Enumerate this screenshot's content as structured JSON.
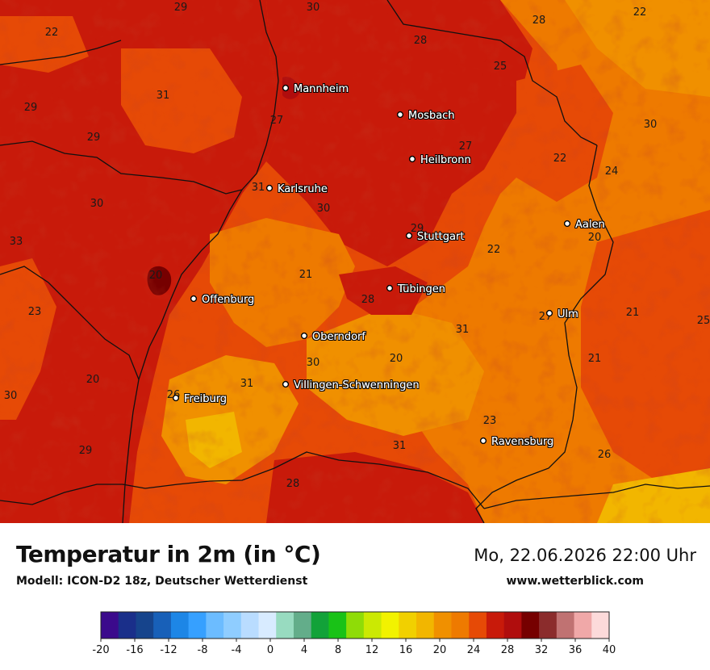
{
  "title": "Temperatur in 2m (in °C)",
  "subtitle": "Modell: ICON-D2 18z, Deutscher Wetterdienst",
  "datetime": "Mo, 22.06.2026 22:00 Uhr",
  "website": "www.wetterblick.com",
  "cities": [
    {
      "name": "Mannheim"
    },
    {
      "name": "Mosbach"
    },
    {
      "name": "Heilbronn"
    },
    {
      "name": "Karlsruhe"
    },
    {
      "name": "Stuttgart"
    },
    {
      "name": "Aalen"
    },
    {
      "name": "Tübingen"
    },
    {
      "name": "Offenburg"
    },
    {
      "name": "Ulm"
    },
    {
      "name": "Oberndorf"
    },
    {
      "name": "Villingen-Schwenningen"
    },
    {
      "name": "Freiburg"
    },
    {
      "name": "Ravensburg"
    }
  ],
  "temperature_labels": [
    "29",
    "30",
    "22",
    "28",
    "22",
    "28",
    "25",
    "29",
    "31",
    "27",
    "30",
    "29",
    "27",
    "22",
    "24",
    "30",
    "31",
    "30",
    "33",
    "20",
    "29",
    "22",
    "20",
    "21",
    "28",
    "23",
    "27",
    "21",
    "25",
    "31",
    "30",
    "20",
    "21",
    "20",
    "31",
    "30",
    "26",
    "23",
    "31",
    "29",
    "26",
    "28"
  ],
  "legend": {
    "ticks": [
      "-20",
      "-16",
      "-12",
      "-8",
      "-4",
      "0",
      "4",
      "8",
      "12",
      "16",
      "20",
      "24",
      "28",
      "32",
      "36",
      "40"
    ],
    "colors": [
      "#3b0a8c",
      "#1a2f8a",
      "#16448c",
      "#1860b8",
      "#1d86e6",
      "#36a0ff",
      "#6cbcff",
      "#8fcdff",
      "#b9dcff",
      "#d8ebff",
      "#98dbc0",
      "#63ad8a",
      "#12a239",
      "#19c217",
      "#8fdc07",
      "#cbe903",
      "#f2f200",
      "#f1d000",
      "#f2b600",
      "#f09000",
      "#ee7a00",
      "#e64a06",
      "#c81a0a",
      "#b00d0d",
      "#760000",
      "#8b2c2c",
      "#c07272",
      "#f0a8a8",
      "#fcdada"
    ]
  }
}
